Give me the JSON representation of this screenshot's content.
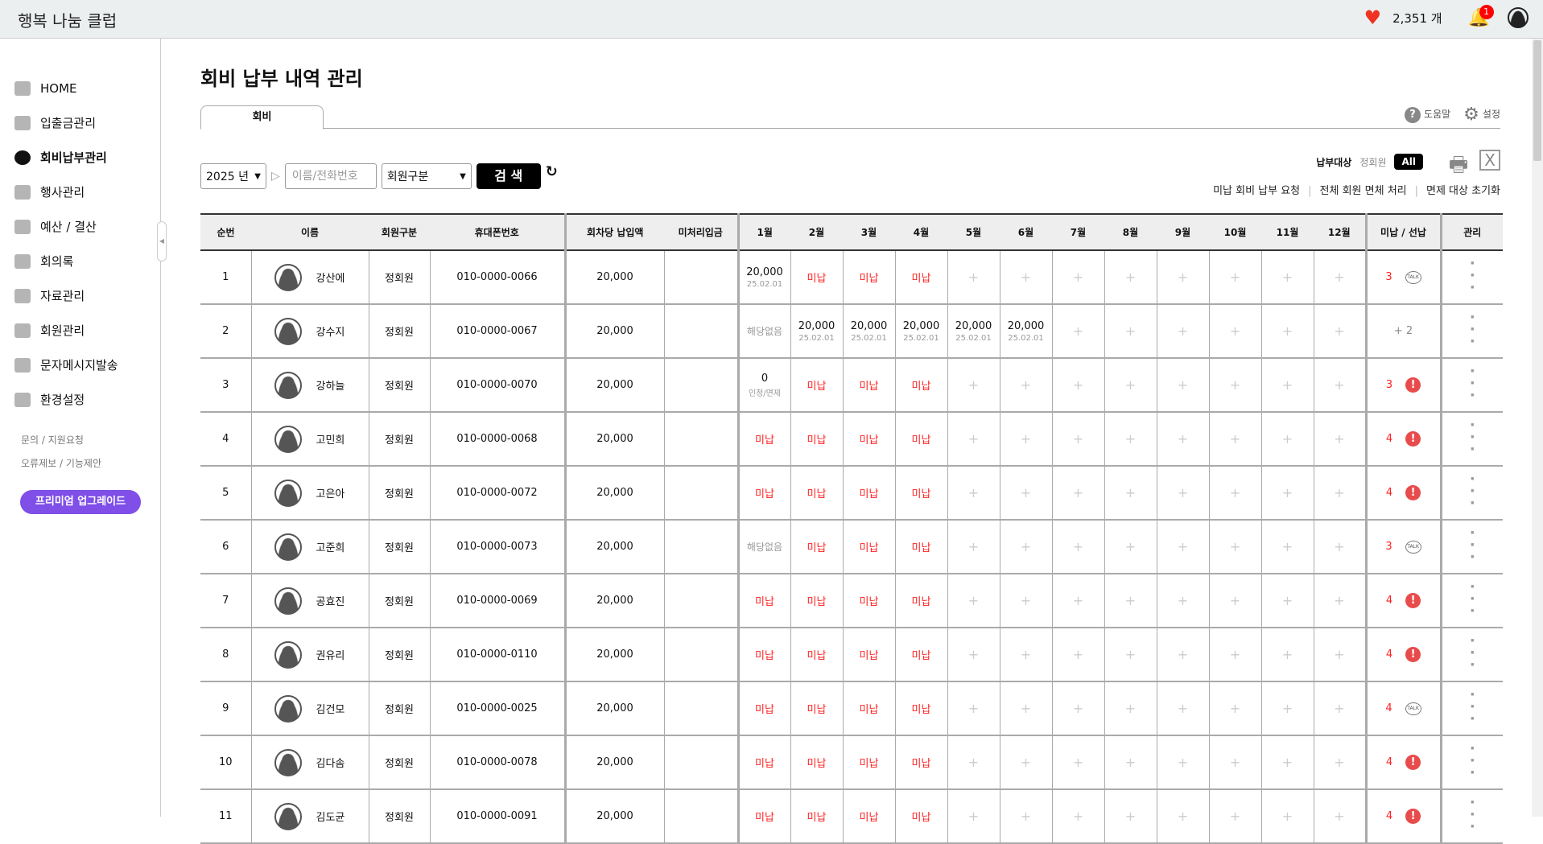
{
  "header": {
    "title": "행복 나눔 클럽",
    "heart_icon": "heart-icon",
    "points": "2,351 개",
    "notifications": "1"
  },
  "sidebar": {
    "items": [
      {
        "label": "HOME"
      },
      {
        "label": "입출금관리"
      },
      {
        "label": "회비납부관리",
        "active": true
      },
      {
        "label": "행사관리"
      },
      {
        "label": "예산 / 결산"
      },
      {
        "label": "회의록"
      },
      {
        "label": "자료관리"
      },
      {
        "label": "회원관리"
      },
      {
        "label": "문자메시지발송"
      },
      {
        "label": "환경설정"
      }
    ],
    "links": [
      "문의 / 지원요청",
      "오류제보 / 기능제안"
    ],
    "premium": "프리미엄 업그레이드",
    "accent": "#7f4fe8"
  },
  "main": {
    "title": "회비 납부 내역 관리",
    "tab": "회비",
    "help": "도움말",
    "settings": "설정",
    "year": "2025 년",
    "search_placeholder": "이름/전화번호",
    "member_type": "회원구분",
    "search_button": "검 색",
    "target_label": "납부대상",
    "target_member": "정회원",
    "target_all": "All",
    "actions": [
      "미납 회비 납부 요청",
      "전체 회원 면체 처리",
      "면제 대상 초기화"
    ]
  },
  "table": {
    "headers": [
      "순번",
      "이름",
      "회원구분",
      "휴대폰번호",
      "회차당 납입액",
      "미처리입금",
      "1월",
      "2월",
      "3월",
      "4월",
      "5월",
      "6월",
      "7월",
      "8월",
      "9월",
      "10월",
      "11월",
      "12월",
      "미납 / 선납",
      "관리"
    ],
    "rows": [
      {
        "no": "1",
        "name": "강산에",
        "type": "정회원",
        "phone": "010-0000-0066",
        "amount": "20,000",
        "pending": "",
        "months": [
          {
            "v": "20,000",
            "s": "25.02.01"
          },
          {
            "v": "미납",
            "t": "u"
          },
          {
            "v": "미납",
            "t": "u"
          },
          {
            "v": "미납",
            "t": "u"
          }
        ],
        "status": {
          "count": "3",
          "icon": "talk"
        }
      },
      {
        "no": "2",
        "name": "강수지",
        "type": "정회원",
        "phone": "010-0000-0067",
        "amount": "20,000",
        "pending": "",
        "months": [
          {
            "v": "해당없음",
            "t": "na"
          },
          {
            "v": "20,000",
            "s": "25.02.01"
          },
          {
            "v": "20,000",
            "s": "25.02.01"
          },
          {
            "v": "20,000",
            "s": "25.02.01"
          },
          {
            "v": "20,000",
            "s": "25.02.01"
          },
          {
            "v": "20,000",
            "s": "25.02.01"
          }
        ],
        "status": {
          "count": "+ 2",
          "icon": "prepaid"
        }
      },
      {
        "no": "3",
        "name": "강하늘",
        "type": "정회원",
        "phone": "010-0000-0070",
        "amount": "20,000",
        "pending": "",
        "months": [
          {
            "v": "0",
            "s": "인정/면제"
          },
          {
            "v": "미납",
            "t": "u"
          },
          {
            "v": "미납",
            "t": "u"
          },
          {
            "v": "미납",
            "t": "u"
          }
        ],
        "status": {
          "count": "3",
          "icon": "alert"
        }
      },
      {
        "no": "4",
        "name": "고민희",
        "type": "정회원",
        "phone": "010-0000-0068",
        "amount": "20,000",
        "pending": "",
        "months": [
          {
            "v": "미납",
            "t": "u"
          },
          {
            "v": "미납",
            "t": "u"
          },
          {
            "v": "미납",
            "t": "u"
          },
          {
            "v": "미납",
            "t": "u"
          }
        ],
        "status": {
          "count": "4",
          "icon": "alert"
        }
      },
      {
        "no": "5",
        "name": "고은아",
        "type": "정회원",
        "phone": "010-0000-0072",
        "amount": "20,000",
        "pending": "",
        "months": [
          {
            "v": "미납",
            "t": "u"
          },
          {
            "v": "미납",
            "t": "u"
          },
          {
            "v": "미납",
            "t": "u"
          },
          {
            "v": "미납",
            "t": "u"
          }
        ],
        "status": {
          "count": "4",
          "icon": "alert"
        }
      },
      {
        "no": "6",
        "name": "고준희",
        "type": "정회원",
        "phone": "010-0000-0073",
        "amount": "20,000",
        "pending": "",
        "months": [
          {
            "v": "해당없음",
            "t": "na"
          },
          {
            "v": "미납",
            "t": "u"
          },
          {
            "v": "미납",
            "t": "u"
          },
          {
            "v": "미납",
            "t": "u"
          }
        ],
        "status": {
          "count": "3",
          "icon": "talk"
        }
      },
      {
        "no": "7",
        "name": "공효진",
        "type": "정회원",
        "phone": "010-0000-0069",
        "amount": "20,000",
        "pending": "",
        "months": [
          {
            "v": "미납",
            "t": "u"
          },
          {
            "v": "미납",
            "t": "u"
          },
          {
            "v": "미납",
            "t": "u"
          },
          {
            "v": "미납",
            "t": "u"
          }
        ],
        "status": {
          "count": "4",
          "icon": "alert"
        }
      },
      {
        "no": "8",
        "name": "권유리",
        "type": "정회원",
        "phone": "010-0000-0110",
        "amount": "20,000",
        "pending": "",
        "months": [
          {
            "v": "미납",
            "t": "u"
          },
          {
            "v": "미납",
            "t": "u"
          },
          {
            "v": "미납",
            "t": "u"
          },
          {
            "v": "미납",
            "t": "u"
          }
        ],
        "status": {
          "count": "4",
          "icon": "alert"
        }
      },
      {
        "no": "9",
        "name": "김건모",
        "type": "정회원",
        "phone": "010-0000-0025",
        "amount": "20,000",
        "pending": "",
        "months": [
          {
            "v": "미납",
            "t": "u"
          },
          {
            "v": "미납",
            "t": "u"
          },
          {
            "v": "미납",
            "t": "u"
          },
          {
            "v": "미납",
            "t": "u"
          }
        ],
        "status": {
          "count": "4",
          "icon": "talk"
        }
      },
      {
        "no": "10",
        "name": "김다솜",
        "type": "정회원",
        "phone": "010-0000-0078",
        "amount": "20,000",
        "pending": "",
        "months": [
          {
            "v": "미납",
            "t": "u"
          },
          {
            "v": "미납",
            "t": "u"
          },
          {
            "v": "미납",
            "t": "u"
          },
          {
            "v": "미납",
            "t": "u"
          }
        ],
        "status": {
          "count": "4",
          "icon": "alert"
        }
      },
      {
        "no": "11",
        "name": "김도균",
        "type": "정회원",
        "phone": "010-0000-0091",
        "amount": "20,000",
        "pending": "",
        "months": [
          {
            "v": "미납",
            "t": "u"
          },
          {
            "v": "미납",
            "t": "u"
          },
          {
            "v": "미납",
            "t": "u"
          },
          {
            "v": "미납",
            "t": "u"
          }
        ],
        "status": {
          "count": "4",
          "icon": "alert"
        }
      }
    ],
    "empty_mark": "+",
    "unpaid_color": "#ff2222"
  }
}
